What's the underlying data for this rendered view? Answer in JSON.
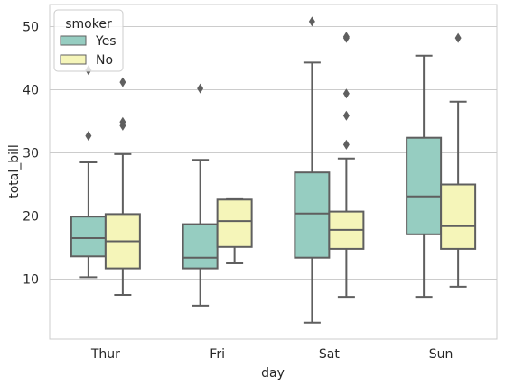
{
  "chart_data": {
    "type": "boxplot",
    "xlabel": "day",
    "ylabel": "total_bill",
    "categories": [
      "Thur",
      "Fri",
      "Sat",
      "Sun"
    ],
    "ylim": [
      0.5,
      53.5
    ],
    "yticks": [
      10,
      20,
      30,
      40,
      50
    ],
    "grid": "y",
    "legend": {
      "title": "smoker",
      "position": "top-left"
    },
    "series": [
      {
        "name": "Yes",
        "color": "#96cdc1",
        "boxes": [
          {
            "category": "Thur",
            "whisker_low": 10.3,
            "q1": 13.6,
            "median": 16.5,
            "q3": 19.9,
            "whisker_high": 28.5,
            "outliers": [
              32.7,
              43.1
            ]
          },
          {
            "category": "Fri",
            "whisker_low": 5.8,
            "q1": 11.7,
            "median": 13.4,
            "q3": 18.7,
            "whisker_high": 28.9,
            "outliers": [
              40.2
            ]
          },
          {
            "category": "Sat",
            "whisker_low": 3.1,
            "q1": 13.4,
            "median": 20.4,
            "q3": 26.9,
            "whisker_high": 44.3,
            "outliers": [
              50.8
            ]
          },
          {
            "category": "Sun",
            "whisker_low": 7.2,
            "q1": 17.1,
            "median": 23.1,
            "q3": 32.4,
            "whisker_high": 45.4,
            "outliers": []
          }
        ]
      },
      {
        "name": "No",
        "color": "#f5f5b9",
        "boxes": [
          {
            "category": "Thur",
            "whisker_low": 7.5,
            "q1": 11.7,
            "median": 16.0,
            "q3": 20.3,
            "whisker_high": 29.8,
            "outliers": [
              34.3,
              34.9,
              41.2
            ]
          },
          {
            "category": "Fri",
            "whisker_low": 12.5,
            "q1": 15.1,
            "median": 19.2,
            "q3": 22.6,
            "whisker_high": 22.8,
            "outliers": []
          },
          {
            "category": "Sat",
            "whisker_low": 7.2,
            "q1": 14.8,
            "median": 17.8,
            "q3": 20.7,
            "whisker_high": 29.1,
            "outliers": [
              31.3,
              35.9,
              39.4,
              48.2,
              48.4
            ]
          },
          {
            "category": "Sun",
            "whisker_low": 8.8,
            "q1": 14.8,
            "median": 18.4,
            "q3": 25.0,
            "whisker_high": 38.1,
            "outliers": [
              48.2
            ]
          }
        ]
      }
    ]
  }
}
